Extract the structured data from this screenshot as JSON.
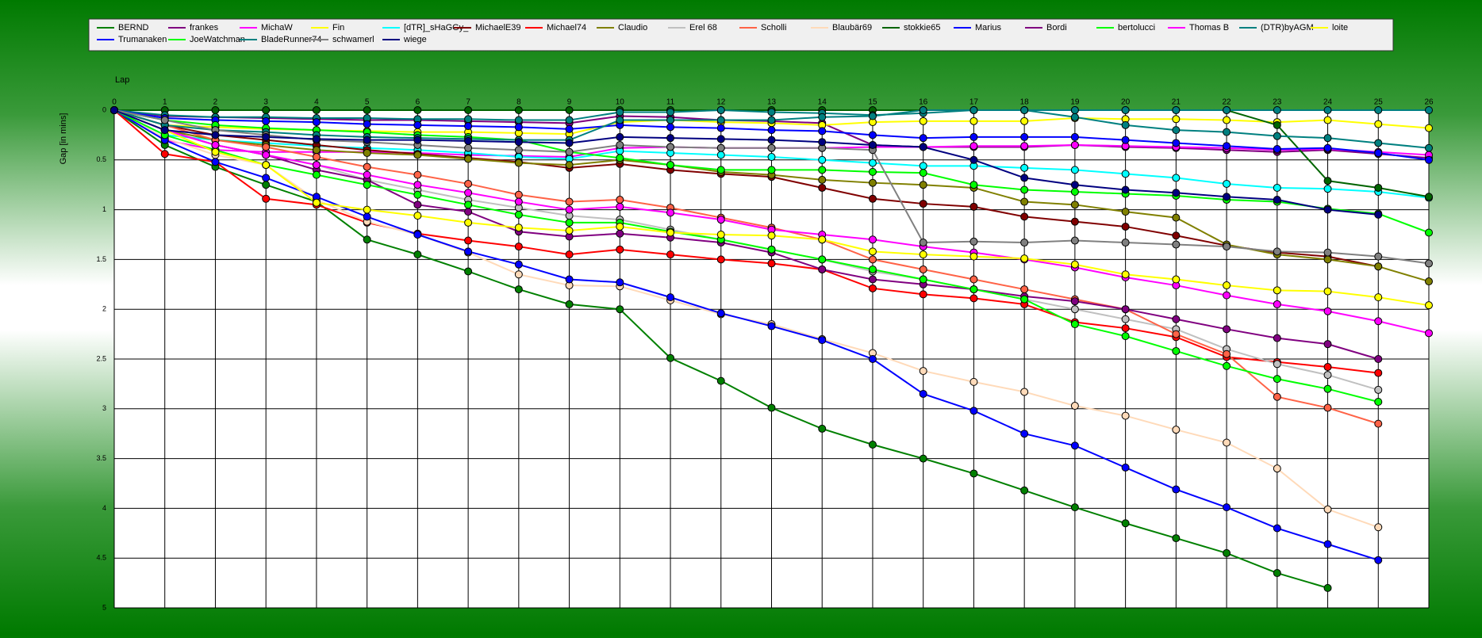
{
  "chart_data": {
    "type": "line",
    "x_label": "Lap",
    "y_label": "Gap [in mins]",
    "x": [
      0,
      1,
      2,
      3,
      4,
      5,
      6,
      7,
      8,
      9,
      10,
      11,
      12,
      13,
      14,
      15,
      16,
      17,
      18,
      19,
      20,
      21,
      22,
      23,
      24,
      25,
      26
    ],
    "xlim": [
      0,
      26
    ],
    "xticks": [
      0,
      1,
      2,
      3,
      4,
      5,
      6,
      7,
      8,
      9,
      10,
      11,
      12,
      13,
      14,
      15,
      16,
      17,
      18,
      19,
      20,
      21,
      22,
      23,
      24,
      25,
      26
    ],
    "ylim": [
      0,
      5
    ],
    "yticks": [
      0,
      0.5,
      1,
      1.5,
      2,
      2.5,
      3,
      3.5,
      4,
      4.5,
      5
    ],
    "y_inverted": true,
    "grid": true,
    "legend": "top",
    "series": [
      {
        "name": "BERND",
        "color": "#008000",
        "values": [
          0,
          0.35,
          0.57,
          0.75,
          0.92,
          1.3,
          1.45,
          1.62,
          1.8,
          1.95,
          2.0,
          2.49,
          2.72,
          2.99,
          3.2,
          3.36,
          3.5,
          3.65,
          3.82,
          3.99,
          4.15,
          4.3,
          4.45,
          4.65,
          4.8,
          null,
          null
        ]
      },
      {
        "name": "frankes",
        "color": "#800080",
        "values": [
          0,
          0.06,
          0.07,
          0.08,
          0.09,
          0.1,
          0.1,
          0.11,
          0.12,
          0.13,
          0.06,
          0.07,
          0.1,
          0.11,
          0.13,
          0.35,
          0.37,
          0.37,
          0.37,
          0.35,
          0.37,
          0.38,
          0.4,
          0.42,
          0.4,
          0.44,
          0.48
        ]
      },
      {
        "name": "MichaW",
        "color": "#ff00ff",
        "values": [
          0,
          0.3,
          0.4,
          0.42,
          0.42,
          0.42,
          0.43,
          0.45,
          0.46,
          0.47,
          0.38,
          0.37,
          0.38,
          0.38,
          0.38,
          0.37,
          0.37,
          0.36,
          0.36,
          0.35,
          0.36,
          0.37,
          0.38,
          0.4,
          0.39,
          0.42,
          0.45
        ]
      },
      {
        "name": "Fin",
        "color": "#ffff00",
        "values": [
          0,
          0.15,
          0.17,
          0.19,
          0.2,
          0.21,
          0.22,
          0.22,
          0.23,
          0.24,
          0.12,
          0.1,
          0.12,
          0.13,
          0.15,
          0.12,
          0.11,
          0.11,
          0.11,
          0.08,
          0.09,
          0.09,
          0.1,
          0.12,
          0.1,
          0.14,
          0.18
        ]
      },
      {
        "name": "[dTR]_sHaGGy_",
        "color": "#00ffff",
        "values": [
          0,
          0.25,
          0.3,
          0.33,
          0.36,
          0.38,
          0.4,
          0.43,
          0.47,
          0.49,
          0.41,
          0.43,
          0.45,
          0.47,
          0.5,
          0.53,
          0.56,
          0.56,
          0.58,
          0.6,
          0.64,
          0.68,
          0.74,
          0.78,
          0.79,
          0.82,
          0.88
        ]
      },
      {
        "name": "MichaelE39",
        "color": "#800000",
        "values": [
          0,
          0.15,
          0.25,
          0.3,
          0.35,
          0.4,
          0.44,
          0.48,
          0.52,
          0.58,
          0.54,
          0.6,
          0.64,
          0.67,
          0.78,
          0.89,
          0.94,
          0.97,
          1.07,
          1.12,
          1.17,
          1.26,
          1.36,
          1.43,
          1.47,
          1.57,
          null
        ]
      },
      {
        "name": "Michael74",
        "color": "#ff0000",
        "values": [
          0,
          0.44,
          0.52,
          0.89,
          0.95,
          1.13,
          1.24,
          1.31,
          1.37,
          1.45,
          1.4,
          1.45,
          1.5,
          1.54,
          1.6,
          1.79,
          1.85,
          1.89,
          1.95,
          2.13,
          2.19,
          2.28,
          2.48,
          2.53,
          2.58,
          2.64,
          null
        ]
      },
      {
        "name": "Claudio",
        "color": "#808000",
        "values": [
          0,
          0.2,
          0.3,
          0.35,
          0.4,
          0.43,
          0.45,
          0.49,
          0.53,
          0.55,
          0.5,
          0.55,
          0.62,
          0.65,
          0.7,
          0.73,
          0.75,
          0.78,
          0.92,
          0.95,
          1.02,
          1.08,
          1.35,
          1.45,
          1.5,
          1.57,
          1.72
        ]
      },
      {
        "name": "Erel 68",
        "color": "#c0c0c0",
        "values": [
          0,
          0.2,
          0.35,
          0.45,
          0.55,
          0.7,
          0.8,
          0.9,
          0.98,
          1.06,
          1.1,
          1.2,
          1.3,
          1.4,
          1.5,
          1.62,
          1.7,
          1.8,
          1.9,
          2.0,
          2.1,
          2.2,
          2.4,
          2.55,
          2.66,
          2.81,
          null
        ]
      },
      {
        "name": "Scholli",
        "color": "#ff6347",
        "values": [
          0,
          0.15,
          0.3,
          0.37,
          0.47,
          0.57,
          0.65,
          0.74,
          0.85,
          0.92,
          0.9,
          0.98,
          1.08,
          1.18,
          1.3,
          1.5,
          1.6,
          1.7,
          1.8,
          1.9,
          2.0,
          2.25,
          2.45,
          2.88,
          2.99,
          3.15,
          null
        ]
      },
      {
        "name": "Blaubär69",
        "color": "#ffdab9",
        "values": [
          0,
          0.28,
          0.45,
          0.55,
          0.9,
          1.12,
          1.25,
          1.43,
          1.65,
          1.76,
          1.77,
          1.91,
          2.05,
          2.15,
          2.3,
          2.44,
          2.62,
          2.73,
          2.83,
          2.97,
          3.07,
          3.21,
          3.34,
          3.6,
          4.01,
          4.19,
          null
        ]
      },
      {
        "name": "stokkie65",
        "color": "#006400",
        "values": [
          0,
          0,
          0,
          0,
          0,
          0,
          0,
          0,
          0,
          0,
          0,
          0,
          0,
          0,
          0,
          0,
          0,
          0,
          0,
          0,
          0,
          0,
          0,
          0.15,
          0.71,
          0.78,
          0.87
        ]
      },
      {
        "name": "Marius",
        "color": "#0000ff",
        "values": [
          0,
          0.3,
          0.52,
          0.68,
          0.87,
          1.07,
          1.25,
          1.42,
          1.55,
          1.7,
          1.73,
          1.88,
          2.04,
          2.17,
          2.31,
          2.5,
          2.85,
          3.02,
          3.25,
          3.37,
          3.59,
          3.81,
          3.99,
          4.2,
          4.36,
          4.52,
          null
        ]
      },
      {
        "name": "Bordi",
        "color": "#800080",
        "values": [
          0,
          0.2,
          0.35,
          0.45,
          0.6,
          0.7,
          0.95,
          1.02,
          1.22,
          1.27,
          1.24,
          1.28,
          1.33,
          1.43,
          1.6,
          1.7,
          1.75,
          1.8,
          1.87,
          1.92,
          2.0,
          2.1,
          2.2,
          2.29,
          2.35,
          2.5,
          null
        ]
      },
      {
        "name": "bertolucci",
        "color": "#00ff00",
        "values": [
          0,
          0.25,
          0.4,
          0.55,
          0.65,
          0.75,
          0.85,
          0.95,
          1.05,
          1.13,
          1.13,
          1.22,
          1.3,
          1.4,
          1.5,
          1.6,
          1.7,
          1.8,
          1.9,
          2.15,
          2.27,
          2.42,
          2.57,
          2.7,
          2.8,
          2.93,
          null
        ]
      },
      {
        "name": "Thomas B",
        "color": "#ff00ff",
        "values": [
          0,
          0.2,
          0.35,
          0.45,
          0.55,
          0.65,
          0.75,
          0.83,
          0.92,
          1.0,
          0.97,
          1.03,
          1.1,
          1.2,
          1.25,
          1.3,
          1.37,
          1.43,
          1.5,
          1.58,
          1.68,
          1.76,
          1.86,
          1.95,
          2.02,
          2.12,
          2.24
        ]
      },
      {
        "name": "(DTR)byAGM",
        "color": "#008080",
        "values": [
          0,
          0.05,
          0.07,
          0.07,
          0.08,
          0.08,
          0.09,
          0.09,
          0.1,
          0.1,
          0.02,
          0.02,
          0,
          0.02,
          0.03,
          0.05,
          0.03,
          0,
          0,
          0.07,
          0.15,
          0.2,
          0.22,
          0.26,
          0.28,
          0.33,
          0.38
        ]
      },
      {
        "name": "loite",
        "color": "#ffff00",
        "values": [
          0,
          0.2,
          0.42,
          0.55,
          0.93,
          1.0,
          1.06,
          1.13,
          1.18,
          1.21,
          1.17,
          1.23,
          1.25,
          1.26,
          1.3,
          1.42,
          1.45,
          1.47,
          1.49,
          1.55,
          1.65,
          1.7,
          1.76,
          1.81,
          1.82,
          1.88,
          1.96
        ]
      },
      {
        "name": "Trumanaken",
        "color": "#0000ff",
        "values": [
          0,
          0.08,
          0.1,
          0.11,
          0.12,
          0.14,
          0.15,
          0.16,
          0.17,
          0.19,
          0.15,
          0.17,
          0.18,
          0.2,
          0.21,
          0.25,
          0.28,
          0.27,
          0.27,
          0.27,
          0.3,
          0.33,
          0.36,
          0.39,
          0.38,
          0.43,
          0.5
        ]
      },
      {
        "name": "JoeWatchman",
        "color": "#00ff00",
        "values": [
          0,
          0.1,
          0.15,
          0.18,
          0.2,
          0.22,
          0.25,
          0.27,
          0.3,
          0.42,
          0.48,
          0.55,
          0.6,
          0.6,
          0.6,
          0.62,
          0.63,
          0.75,
          0.8,
          0.82,
          0.84,
          0.86,
          0.9,
          0.92,
          0.99,
          1.04,
          1.23
        ]
      },
      {
        "name": "BladeRunner74",
        "color": "#008080",
        "values": [
          0,
          0.15,
          0.2,
          0.22,
          0.25,
          0.27,
          0.28,
          0.29,
          0.3,
          0.3,
          0.1,
          0.1,
          0.1,
          0.1,
          0.07,
          0.06,
          0,
          0,
          0,
          0,
          0,
          0,
          0,
          0,
          0,
          0,
          0
        ]
      },
      {
        "name": "schwamerl",
        "color": "#808080",
        "values": [
          0,
          0.1,
          0.2,
          0.25,
          0.3,
          0.32,
          0.35,
          0.38,
          0.4,
          0.42,
          0.35,
          0.37,
          0.38,
          0.38,
          0.38,
          0.4,
          1.33,
          1.32,
          1.33,
          1.31,
          1.33,
          1.35,
          1.37,
          1.42,
          1.43,
          1.47,
          1.54
        ]
      },
      {
        "name": "wiege",
        "color": "#000080",
        "values": [
          0,
          0.2,
          0.25,
          0.27,
          0.29,
          0.3,
          0.3,
          0.31,
          0.32,
          0.33,
          0.27,
          0.28,
          0.29,
          0.3,
          0.32,
          0.35,
          0.37,
          0.5,
          0.68,
          0.75,
          0.8,
          0.83,
          0.87,
          0.9,
          1.0,
          1.05,
          null
        ]
      }
    ]
  }
}
